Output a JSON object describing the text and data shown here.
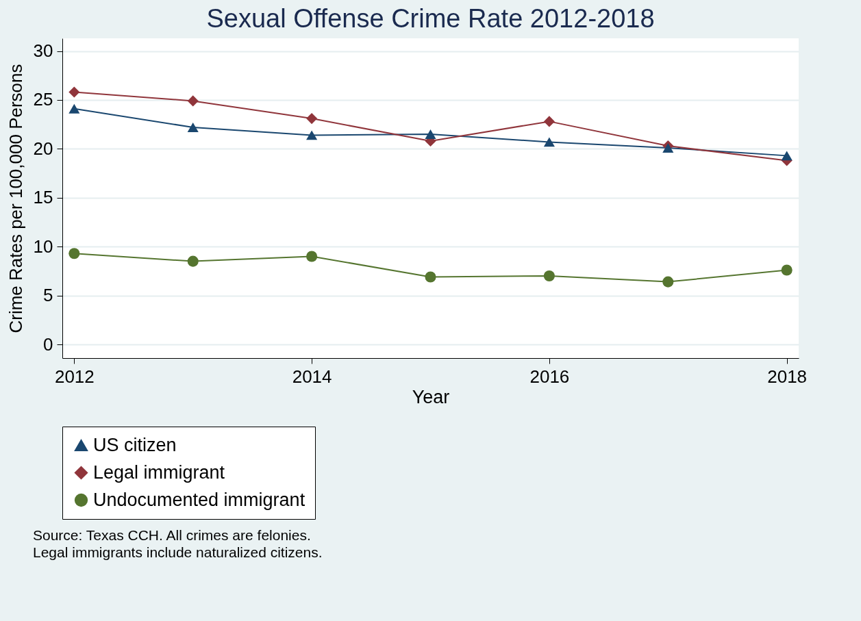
{
  "chart_data": {
    "type": "line",
    "title": "Sexual Offense Crime Rate 2012-2018",
    "xlabel": "Year",
    "ylabel": "Crime Rates per 100,000 Persons",
    "x": [
      2012,
      2013,
      2014,
      2015,
      2016,
      2017,
      2018
    ],
    "series": [
      {
        "name": "US citizen",
        "color": "#1a476f",
        "marker": "triangle",
        "values": [
          24.1,
          22.2,
          21.4,
          21.5,
          20.7,
          20.1,
          19.3
        ]
      },
      {
        "name": "Legal immigrant",
        "color": "#90353b",
        "marker": "diamond",
        "values": [
          25.8,
          24.9,
          23.1,
          20.8,
          22.8,
          20.3,
          18.8
        ]
      },
      {
        "name": "Undocumented immigrant",
        "color": "#55752f",
        "marker": "circle",
        "values": [
          9.3,
          8.5,
          9.0,
          6.9,
          7.0,
          6.4,
          7.6
        ]
      }
    ],
    "xlim": [
      2011.9,
      2018.1
    ],
    "xticks": [
      2012,
      2014,
      2016,
      2018
    ],
    "ylim": [
      -1.4,
      31.3
    ],
    "yticks": [
      0,
      5,
      10,
      15,
      20,
      25,
      30
    ],
    "grid": "y",
    "legend": "bottom",
    "annotations": [
      "Source: Texas CCH. All crimes are felonies.",
      "Legal immigrants include naturalized citizens."
    ]
  }
}
